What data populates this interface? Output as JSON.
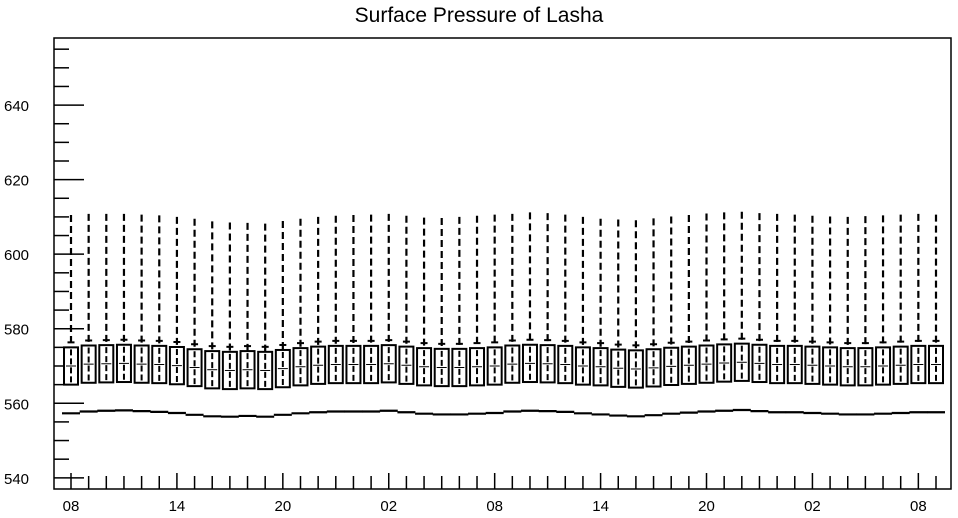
{
  "chart_data": {
    "type": "box",
    "title": "Surface Pressure of Lasha",
    "xlabel": "",
    "ylabel": "",
    "ylim": [
      537,
      658
    ],
    "yticks": [
      540,
      560,
      580,
      600,
      620,
      640
    ],
    "xticks": [
      "08",
      "14",
      "20",
      "02",
      "08",
      "14",
      "20",
      "02",
      "08"
    ],
    "box_series": {
      "x": [
        0,
        1,
        2,
        3,
        4,
        5,
        6,
        7,
        8,
        9,
        10,
        11,
        12,
        13,
        14,
        15,
        16,
        17,
        18,
        19,
        20,
        21,
        22,
        23,
        24,
        25,
        26,
        27,
        28,
        29,
        30,
        31,
        32,
        33,
        34,
        35,
        36,
        37,
        38,
        39,
        40,
        41,
        42,
        43,
        44,
        45,
        46,
        47,
        48,
        49
      ],
      "whisker_high": [
        610.5,
        610.8,
        610.8,
        610.8,
        610.6,
        610.4,
        610.0,
        609.5,
        608.8,
        608.5,
        608.4,
        608.2,
        608.9,
        609.5,
        610.0,
        610.3,
        610.5,
        610.6,
        610.8,
        610.3,
        609.8,
        609.7,
        610.0,
        610.3,
        610.6,
        610.8,
        611.2,
        611.0,
        610.6,
        610.0,
        609.5,
        609.3,
        609.1,
        609.6,
        610.1,
        610.5,
        610.9,
        611.2,
        611.4,
        611.0,
        610.8,
        610.6,
        610.3,
        610.1,
        610.0,
        610.2,
        610.4,
        610.6,
        610.8,
        610.6
      ],
      "q3": [
        575.0,
        575.5,
        575.6,
        575.7,
        575.5,
        575.4,
        575.1,
        574.5,
        574.0,
        573.8,
        574.0,
        573.8,
        574.3,
        574.8,
        575.2,
        575.4,
        575.4,
        575.4,
        575.6,
        575.2,
        574.8,
        574.6,
        574.6,
        574.8,
        575.0,
        575.5,
        575.7,
        575.6,
        575.4,
        575.0,
        574.8,
        574.4,
        574.2,
        574.5,
        574.9,
        575.2,
        575.5,
        575.8,
        576.0,
        575.7,
        575.4,
        575.4,
        575.2,
        575.0,
        574.8,
        574.8,
        575.0,
        575.2,
        575.4,
        575.4
      ],
      "median": [
        570.0,
        570.5,
        570.6,
        570.7,
        570.5,
        570.4,
        570.1,
        569.6,
        569.0,
        568.8,
        569.0,
        568.8,
        569.3,
        569.8,
        570.2,
        570.4,
        570.4,
        570.4,
        570.6,
        570.2,
        569.8,
        569.6,
        569.6,
        569.8,
        570.0,
        570.5,
        570.7,
        570.6,
        570.4,
        570.0,
        569.8,
        569.4,
        569.2,
        569.5,
        569.9,
        570.2,
        570.5,
        570.8,
        571.0,
        570.7,
        570.4,
        570.4,
        570.2,
        570.0,
        569.8,
        569.8,
        570.0,
        570.2,
        570.4,
        570.4
      ],
      "q1": [
        565.0,
        565.5,
        565.6,
        565.7,
        565.5,
        565.4,
        565.1,
        564.6,
        564.0,
        563.8,
        564.0,
        563.8,
        564.3,
        564.8,
        565.2,
        565.4,
        565.4,
        565.4,
        565.6,
        565.2,
        564.8,
        564.6,
        564.6,
        564.8,
        565.0,
        565.5,
        565.7,
        565.6,
        565.4,
        565.0,
        564.8,
        564.4,
        564.2,
        564.5,
        564.9,
        565.2,
        565.5,
        565.8,
        566.0,
        565.7,
        565.4,
        565.4,
        565.2,
        565.0,
        564.8,
        564.8,
        565.0,
        565.2,
        565.4,
        565.4
      ],
      "whisker_low": [
        557.3,
        557.8,
        558.0,
        558.1,
        557.9,
        557.7,
        557.4,
        556.9,
        556.5,
        556.4,
        556.6,
        556.4,
        556.9,
        557.3,
        557.6,
        557.8,
        557.8,
        557.8,
        558.0,
        557.6,
        557.2,
        557.0,
        557.0,
        557.2,
        557.4,
        557.8,
        558.0,
        557.9,
        557.7,
        557.3,
        557.0,
        556.7,
        556.5,
        556.8,
        557.2,
        557.5,
        557.8,
        558.0,
        558.2,
        557.9,
        557.6,
        557.6,
        557.4,
        557.2,
        557.0,
        557.0,
        557.2,
        557.4,
        557.6,
        557.6
      ]
    },
    "grid": false,
    "legend": "none"
  }
}
